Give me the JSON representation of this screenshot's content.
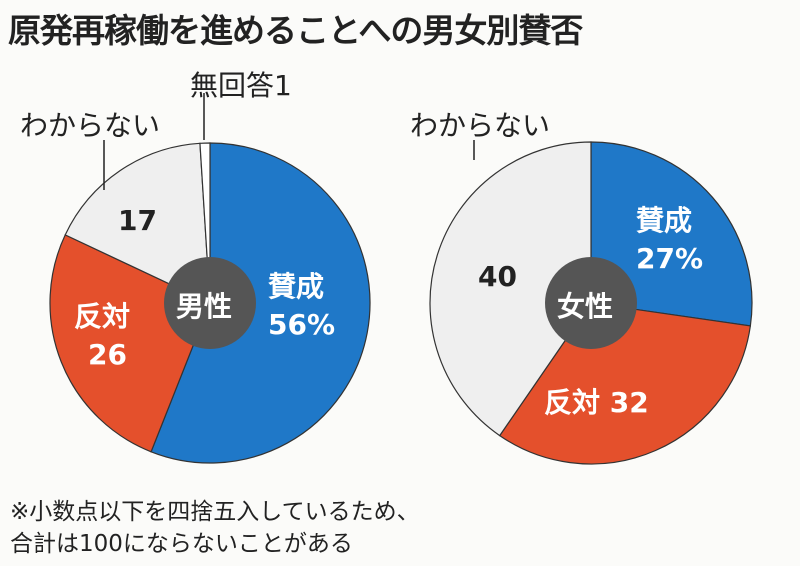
{
  "title": "原発再稼働を進めることへの男女別賛否",
  "colors": {
    "support": "#1f78c8",
    "oppose": "#e4502c",
    "unknown": "#efefef",
    "no_answer": "#ffffff",
    "center": "#555555"
  },
  "chart_data": [
    {
      "type": "pie",
      "center_label": "男性",
      "categories": [
        "賛成",
        "反対",
        "わからない",
        "無回答"
      ],
      "values": [
        56,
        26,
        17,
        1
      ],
      "labels": {
        "support": "賛成",
        "support_value": "56%",
        "oppose": "反対",
        "oppose_value": "26",
        "unknown": "わからない",
        "unknown_value": "17",
        "no_answer": "無回答1"
      }
    },
    {
      "type": "pie",
      "center_label": "女性",
      "categories": [
        "賛成",
        "反対",
        "わからない"
      ],
      "values": [
        27,
        32,
        40
      ],
      "labels": {
        "support": "賛成",
        "support_value": "27%",
        "oppose": "反対 32",
        "unknown": "わからない",
        "unknown_value": "40"
      }
    }
  ],
  "footnote": [
    "※小数点以下を四捨五入しているため、",
    "合計は100にならないことがある"
  ]
}
